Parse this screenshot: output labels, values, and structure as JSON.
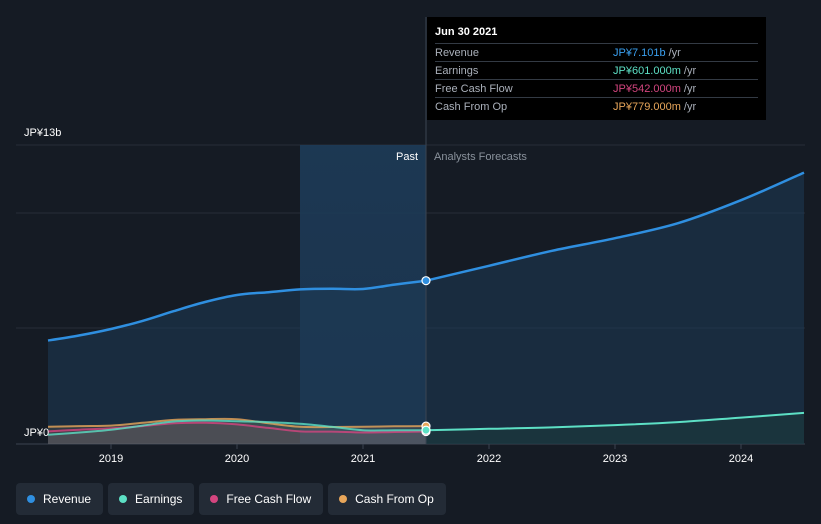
{
  "chart_data": {
    "type": "line",
    "y_max_label": "JP¥13b",
    "y_min_label": "JP¥0",
    "ylim": [
      0,
      13
    ],
    "xlim": [
      2018.5,
      2024.5
    ],
    "x_ticks": [
      {
        "value": 2019,
        "label": "2019"
      },
      {
        "value": 2020,
        "label": "2020"
      },
      {
        "value": 2021,
        "label": "2021"
      },
      {
        "value": 2022,
        "label": "2022"
      },
      {
        "value": 2023,
        "label": "2023"
      },
      {
        "value": 2024,
        "label": "2024"
      }
    ],
    "divider_x": 2021.5,
    "highlight_start_x": 2020.5,
    "past_label": "Past",
    "forecast_label": "Analysts Forecasts",
    "series": [
      {
        "name": "Revenue",
        "color": "#2f8fe0",
        "filled": true,
        "points": [
          [
            2018.5,
            4.5
          ],
          [
            2018.75,
            4.72
          ],
          [
            2019.0,
            5.0
          ],
          [
            2019.25,
            5.35
          ],
          [
            2019.5,
            5.78
          ],
          [
            2019.75,
            6.18
          ],
          [
            2020.0,
            6.48
          ],
          [
            2020.25,
            6.6
          ],
          [
            2020.5,
            6.72
          ],
          [
            2020.75,
            6.75
          ],
          [
            2021.0,
            6.74
          ],
          [
            2021.25,
            6.93
          ],
          [
            2021.5,
            7.101
          ]
        ],
        "forecast": [
          [
            2021.5,
            7.101
          ],
          [
            2022.0,
            7.75
          ],
          [
            2022.5,
            8.4
          ],
          [
            2023.0,
            8.95
          ],
          [
            2023.5,
            9.6
          ],
          [
            2024.0,
            10.6
          ],
          [
            2024.5,
            11.8
          ]
        ]
      },
      {
        "name": "Earnings",
        "color": "#5de0c5",
        "filled": false,
        "points": [
          [
            2018.5,
            0.4
          ],
          [
            2018.75,
            0.5
          ],
          [
            2019.0,
            0.62
          ],
          [
            2019.25,
            0.8
          ],
          [
            2019.5,
            0.98
          ],
          [
            2019.75,
            1.02
          ],
          [
            2020.0,
            0.99
          ],
          [
            2020.25,
            0.95
          ],
          [
            2020.5,
            0.88
          ],
          [
            2020.75,
            0.75
          ],
          [
            2021.0,
            0.6
          ],
          [
            2021.25,
            0.6
          ],
          [
            2021.5,
            0.601
          ]
        ],
        "forecast": [
          [
            2021.5,
            0.601
          ],
          [
            2022.0,
            0.66
          ],
          [
            2022.5,
            0.72
          ],
          [
            2023.0,
            0.82
          ],
          [
            2023.5,
            0.95
          ],
          [
            2024.0,
            1.15
          ],
          [
            2024.5,
            1.35
          ]
        ]
      },
      {
        "name": "Free Cash Flow",
        "color": "#d4457f",
        "filled": false,
        "points": [
          [
            2018.5,
            0.55
          ],
          [
            2018.75,
            0.62
          ],
          [
            2019.0,
            0.68
          ],
          [
            2019.25,
            0.78
          ],
          [
            2019.5,
            0.9
          ],
          [
            2019.75,
            0.92
          ],
          [
            2020.0,
            0.85
          ],
          [
            2020.25,
            0.7
          ],
          [
            2020.5,
            0.55
          ],
          [
            2020.75,
            0.54
          ],
          [
            2021.0,
            0.5
          ],
          [
            2021.25,
            0.52
          ],
          [
            2021.5,
            0.542
          ]
        ],
        "forecast": []
      },
      {
        "name": "Cash From Op",
        "color": "#e8a65a",
        "filled": false,
        "points": [
          [
            2018.5,
            0.75
          ],
          [
            2018.75,
            0.78
          ],
          [
            2019.0,
            0.8
          ],
          [
            2019.25,
            0.92
          ],
          [
            2019.5,
            1.05
          ],
          [
            2019.75,
            1.08
          ],
          [
            2020.0,
            1.08
          ],
          [
            2020.25,
            0.9
          ],
          [
            2020.5,
            0.75
          ],
          [
            2020.75,
            0.74
          ],
          [
            2021.0,
            0.75
          ],
          [
            2021.25,
            0.77
          ],
          [
            2021.5,
            0.779
          ]
        ],
        "forecast": []
      }
    ]
  },
  "tooltip": {
    "date": "Jun 30 2021",
    "rows": [
      {
        "label": "Revenue",
        "value": "JP¥7.101b",
        "unit": "/yr",
        "color": "#3aa0f0"
      },
      {
        "label": "Earnings",
        "value": "JP¥601.000m",
        "unit": "/yr",
        "color": "#5de0c5"
      },
      {
        "label": "Free Cash Flow",
        "value": "JP¥542.000m",
        "unit": "/yr",
        "color": "#d4457f"
      },
      {
        "label": "Cash From Op",
        "value": "JP¥779.000m",
        "unit": "/yr",
        "color": "#e8a65a"
      }
    ]
  },
  "legend": [
    {
      "label": "Revenue",
      "color": "#2f8fe0"
    },
    {
      "label": "Earnings",
      "color": "#5de0c5"
    },
    {
      "label": "Free Cash Flow",
      "color": "#d4457f"
    },
    {
      "label": "Cash From Op",
      "color": "#e8a65a"
    }
  ]
}
